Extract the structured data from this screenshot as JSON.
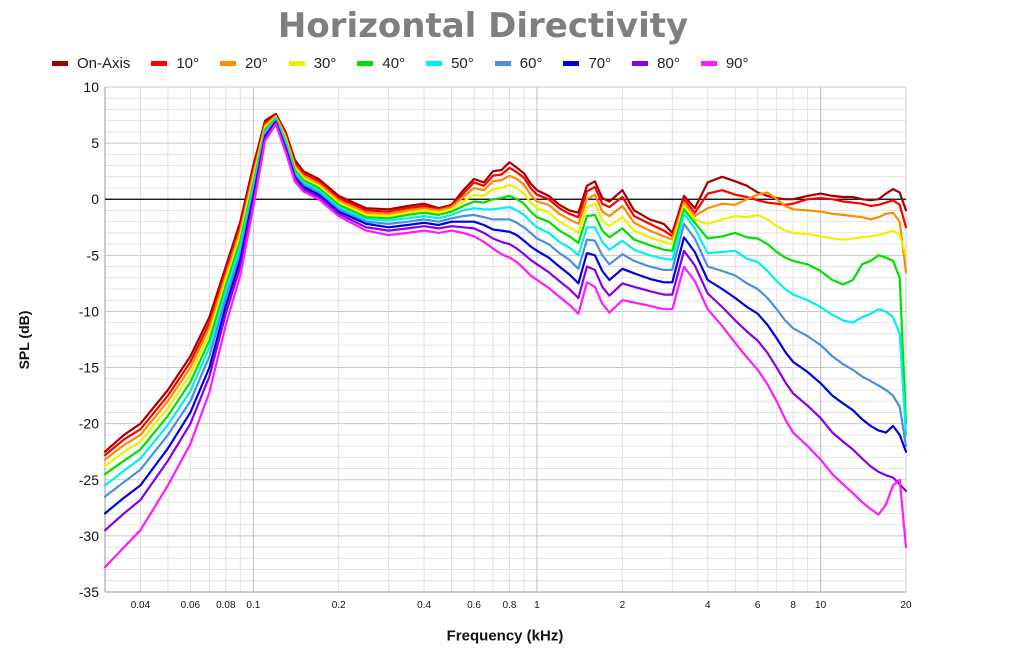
{
  "chart_data": {
    "type": "line",
    "title": "Horizontal Directivity",
    "xlabel": "Frequency (kHz)",
    "ylabel": "SPL (dB)",
    "x_scale": "log",
    "xlim": [
      0.03,
      20
    ],
    "ylim": [
      -35,
      10
    ],
    "x_ticks": [
      0.04,
      0.06,
      0.08,
      0.1,
      0.2,
      0.4,
      0.6,
      0.8,
      1,
      2,
      4,
      6,
      8,
      10,
      20
    ],
    "y_ticks": [
      10,
      5,
      0,
      -5,
      -10,
      -15,
      -20,
      -25,
      -30,
      -35
    ],
    "grid": true,
    "legend": "top",
    "zero_line": 0,
    "base_x": [
      0.03,
      0.035,
      0.04,
      0.05,
      0.06,
      0.07,
      0.08,
      0.09,
      0.1,
      0.11,
      0.12,
      0.13,
      0.14,
      0.15,
      0.17,
      0.2,
      0.25,
      0.3,
      0.35,
      0.4,
      0.45,
      0.5,
      0.55,
      0.6,
      0.65,
      0.7,
      0.75,
      0.8,
      0.85,
      0.9,
      0.95,
      1,
      1.1,
      1.2,
      1.3,
      1.4,
      1.5,
      1.6,
      1.7,
      1.8,
      2,
      2.2,
      2.5,
      2.8,
      3,
      3.3,
      3.6,
      4,
      4.5,
      5,
      5.5,
      6,
      6.5,
      7,
      7.5,
      8,
      9,
      10,
      11,
      12,
      13,
      14,
      15,
      16,
      17,
      18,
      19,
      20
    ],
    "series": [
      {
        "name": "On-Axis",
        "color": "#a50000",
        "values": [
          -22.5,
          -21,
          -20,
          -17,
          -14,
          -10.5,
          -6,
          -2,
          3,
          7,
          7.6,
          6,
          3.5,
          2.5,
          1.8,
          0.3,
          -0.8,
          -0.9,
          -0.6,
          -0.4,
          -0.8,
          -0.5,
          0.8,
          1.8,
          1.5,
          2.5,
          2.6,
          3.3,
          2.8,
          2.3,
          1.4,
          0.8,
          0.3,
          -0.5,
          -1,
          -1.2,
          1.2,
          1.6,
          0.1,
          -0.2,
          0.8,
          -1,
          -1.8,
          -2.2,
          -3,
          0.3,
          -0.8,
          1.5,
          2,
          1.6,
          1.2,
          0.6,
          0.3,
          0.1,
          0,
          0,
          0.3,
          0.5,
          0.3,
          0.2,
          0.2,
          0,
          -0.1,
          0,
          0.5,
          0.9,
          0.6,
          -1
        ]
      },
      {
        "name": "10°",
        "color": "#ff0000",
        "values": [
          -22.8,
          -21.4,
          -20.5,
          -17.5,
          -14.5,
          -11,
          -6.4,
          -2.4,
          2.6,
          6.8,
          7.5,
          5.8,
          3.2,
          2.3,
          1.6,
          0.1,
          -1,
          -1.1,
          -0.8,
          -0.6,
          -0.9,
          -0.6,
          0.5,
          1.5,
          1.2,
          2.1,
          2.2,
          2.8,
          2.4,
          1.9,
          1,
          0.4,
          0,
          -0.8,
          -1.3,
          -1.6,
          0.7,
          1.1,
          -0.4,
          -0.7,
          0.2,
          -1.5,
          -2.2,
          -2.8,
          -3.3,
          0,
          -1.2,
          0.5,
          0.8,
          0.4,
          0.2,
          -0.1,
          -0.3,
          -0.4,
          -0.5,
          -0.4,
          0,
          0.1,
          0,
          -0.2,
          -0.3,
          -0.4,
          -0.6,
          -0.5,
          -0.3,
          -0.1,
          -0.5,
          -2.5
        ]
      },
      {
        "name": "20°",
        "color": "#ff8c00",
        "values": [
          -23.2,
          -21.9,
          -21,
          -18,
          -15,
          -11.4,
          -6.8,
          -2.8,
          2.2,
          6.6,
          7.4,
          5.6,
          3,
          2.1,
          1.4,
          -0.1,
          -1.2,
          -1.3,
          -1,
          -0.8,
          -1,
          -0.7,
          0.2,
          1,
          0.8,
          1.6,
          1.7,
          2.1,
          1.8,
          1.3,
          0.4,
          -0.2,
          -0.5,
          -1.3,
          -1.8,
          -2.2,
          0,
          0.4,
          -1.1,
          -1.5,
          -0.6,
          -2.1,
          -2.8,
          -3.3,
          -3.6,
          -0.3,
          -1.5,
          -0.8,
          -0.4,
          -0.5,
          0,
          0.4,
          0.6,
          0,
          -0.6,
          -0.9,
          -1,
          -1.1,
          -1.3,
          -1.4,
          -1.5,
          -1.6,
          -1.8,
          -1.6,
          -1.3,
          -1.2,
          -2,
          -6.5
        ]
      },
      {
        "name": "30°",
        "color": "#f0f000",
        "values": [
          -23.8,
          -22.5,
          -21.6,
          -18.6,
          -15.6,
          -12,
          -7.2,
          -3.2,
          1.8,
          6.4,
          7.3,
          5.4,
          2.8,
          1.9,
          1.2,
          -0.3,
          -1.4,
          -1.5,
          -1.2,
          -1,
          -1.2,
          -0.9,
          -0.2,
          0.4,
          0.3,
          0.9,
          1,
          1.3,
          1,
          0.5,
          -0.3,
          -0.8,
          -1.2,
          -2,
          -2.5,
          -3,
          -0.7,
          -0.4,
          -1.9,
          -2.4,
          -1.6,
          -2.8,
          -3.4,
          -3.8,
          -4,
          -0.6,
          -1.8,
          -2.2,
          -1.8,
          -1.5,
          -1.6,
          -1.4,
          -1.8,
          -2.4,
          -2.8,
          -3,
          -3.1,
          -3.3,
          -3.5,
          -3.6,
          -3.5,
          -3.4,
          -3.3,
          -3.2,
          -3,
          -2.8,
          -3.2,
          -5
        ]
      },
      {
        "name": "40°",
        "color": "#00e000",
        "values": [
          -24.5,
          -23.3,
          -22.3,
          -19.3,
          -16.3,
          -12.6,
          -7.7,
          -3.7,
          1.4,
          6.2,
          7.2,
          5.2,
          2.6,
          1.7,
          1,
          -0.5,
          -1.6,
          -1.7,
          -1.4,
          -1.2,
          -1.4,
          -1.1,
          -0.6,
          -0.2,
          -0.3,
          0,
          0.1,
          0.3,
          0,
          -0.4,
          -1.1,
          -1.6,
          -2,
          -2.8,
          -3.3,
          -3.9,
          -1.5,
          -1.4,
          -2.8,
          -3.4,
          -2.6,
          -3.6,
          -4.1,
          -4.5,
          -4.6,
          -0.9,
          -2.1,
          -3.5,
          -3.3,
          -3,
          -3.4,
          -3.5,
          -4,
          -4.7,
          -5.2,
          -5.5,
          -5.8,
          -6.4,
          -7.2,
          -7.6,
          -7.2,
          -5.8,
          -5.5,
          -5,
          -5.2,
          -5.5,
          -7,
          -20
        ]
      },
      {
        "name": "50°",
        "color": "#00f0f0",
        "values": [
          -25.5,
          -24.2,
          -23.1,
          -20.1,
          -17.1,
          -13.2,
          -8.2,
          -4.2,
          1,
          6,
          7.1,
          5,
          2.4,
          1.5,
          0.8,
          -0.7,
          -1.8,
          -1.9,
          -1.7,
          -1.5,
          -1.7,
          -1.4,
          -1,
          -0.8,
          -0.9,
          -0.9,
          -0.8,
          -0.7,
          -1,
          -1.4,
          -2,
          -2.5,
          -3,
          -3.8,
          -4.3,
          -5,
          -2.5,
          -2.5,
          -3.8,
          -4.5,
          -3.7,
          -4.5,
          -5,
          -5.3,
          -5.4,
          -1.3,
          -2.6,
          -4.8,
          -4.7,
          -4.6,
          -5.3,
          -5.6,
          -6.4,
          -7.3,
          -8,
          -8.5,
          -9,
          -9.6,
          -10.3,
          -10.8,
          -11,
          -10.5,
          -10.2,
          -9.8,
          -10,
          -10.5,
          -12,
          -21
        ]
      },
      {
        "name": "60°",
        "color": "#4a90e2",
        "values": [
          -26.5,
          -25.2,
          -24.1,
          -21,
          -18,
          -14,
          -8.8,
          -4.8,
          0.6,
          5.8,
          7,
          4.8,
          2.2,
          1.3,
          0.6,
          -0.9,
          -2,
          -2.2,
          -2,
          -1.8,
          -2,
          -1.7,
          -1.5,
          -1.4,
          -1.6,
          -1.8,
          -1.8,
          -1.8,
          -2.1,
          -2.5,
          -3,
          -3.5,
          -4,
          -4.8,
          -5.4,
          -6.2,
          -3.6,
          -3.7,
          -5,
          -5.8,
          -4.9,
          -5.5,
          -6,
          -6.3,
          -6.3,
          -2.2,
          -3.5,
          -6,
          -6.4,
          -6.8,
          -7.5,
          -8,
          -8.8,
          -9.8,
          -10.8,
          -11.5,
          -12.2,
          -13,
          -14,
          -14.7,
          -15.2,
          -15.8,
          -16.2,
          -16.6,
          -17,
          -17.5,
          -18.5,
          -22
        ]
      },
      {
        "name": "70°",
        "color": "#0000e0",
        "values": [
          -28,
          -26.6,
          -25.5,
          -22.2,
          -19,
          -15,
          -9.5,
          -5.4,
          0.2,
          5.6,
          6.9,
          4.6,
          2,
          1.1,
          0.4,
          -1.1,
          -2.2,
          -2.5,
          -2.3,
          -2.1,
          -2.3,
          -2,
          -2,
          -2,
          -2.3,
          -2.7,
          -2.8,
          -2.9,
          -3.2,
          -3.7,
          -4.2,
          -4.6,
          -5.2,
          -6,
          -6.7,
          -7.5,
          -4.8,
          -5,
          -6.4,
          -7.2,
          -6.2,
          -6.6,
          -7.1,
          -7.4,
          -7.4,
          -3.4,
          -4.7,
          -7.2,
          -8,
          -8.8,
          -9.6,
          -10.2,
          -11.2,
          -12.4,
          -13.6,
          -14.5,
          -15.4,
          -16.4,
          -17.5,
          -18.2,
          -18.8,
          -19.6,
          -20.2,
          -20.6,
          -20.8,
          -20.2,
          -21,
          -22.5
        ]
      },
      {
        "name": "80°",
        "color": "#8a00e6",
        "values": [
          -29.5,
          -28,
          -26.8,
          -23.3,
          -20,
          -15.8,
          -10.2,
          -6,
          -0.2,
          5.4,
          6.8,
          4.4,
          1.8,
          0.9,
          0.2,
          -1.3,
          -2.5,
          -2.8,
          -2.6,
          -2.4,
          -2.6,
          -2.4,
          -2.5,
          -2.6,
          -3,
          -3.5,
          -3.8,
          -4,
          -4.4,
          -4.9,
          -5.4,
          -5.8,
          -6.5,
          -7.3,
          -8,
          -8.8,
          -6,
          -6.3,
          -7.8,
          -8.6,
          -7.5,
          -7.8,
          -8.2,
          -8.5,
          -8.5,
          -4.6,
          -5.9,
          -8.4,
          -9.6,
          -10.8,
          -11.8,
          -12.6,
          -13.7,
          -15,
          -16.3,
          -17.3,
          -18.4,
          -19.5,
          -20.8,
          -21.6,
          -22.3,
          -23.1,
          -23.8,
          -24.3,
          -24.6,
          -24.8,
          -25.4,
          -26
        ]
      },
      {
        "name": "90°",
        "color": "#ff1aff",
        "values": [
          -32.8,
          -31,
          -29.5,
          -25.5,
          -21.8,
          -17.2,
          -11.2,
          -6.8,
          -0.7,
          5.2,
          6.7,
          4.2,
          1.6,
          0.7,
          0,
          -1.5,
          -2.8,
          -3.2,
          -3,
          -2.8,
          -3,
          -2.8,
          -3,
          -3.3,
          -3.8,
          -4.4,
          -4.9,
          -5.2,
          -5.6,
          -6.2,
          -6.8,
          -7.2,
          -7.9,
          -8.7,
          -9.4,
          -10.2,
          -7.4,
          -7.8,
          -9.3,
          -10.1,
          -9,
          -9.2,
          -9.5,
          -9.8,
          -9.8,
          -6,
          -7.3,
          -9.8,
          -11.3,
          -12.8,
          -14.1,
          -15.2,
          -16.5,
          -18,
          -19.6,
          -20.8,
          -22,
          -23.2,
          -24.5,
          -25.4,
          -26.2,
          -27,
          -27.6,
          -28.1,
          -27.2,
          -25.5,
          -25,
          -31
        ]
      }
    ]
  }
}
